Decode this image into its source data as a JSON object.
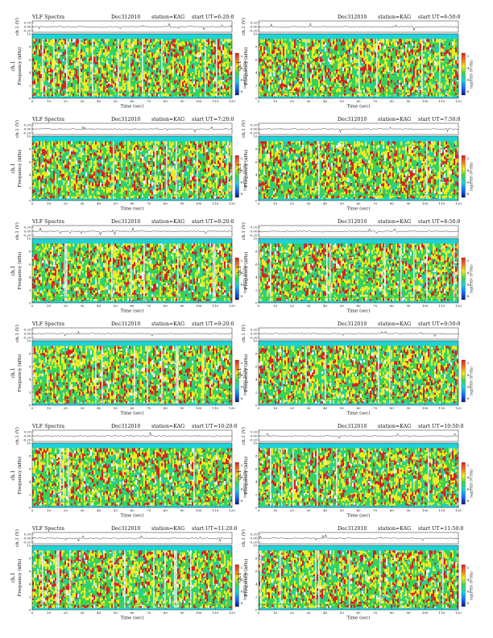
{
  "page": {
    "header_text": {
      "left_title": "VLF Spectra",
      "date": "Dec312010",
      "station": "station=KAG",
      "start_label": "start UT"
    },
    "labels": {
      "top_ylabel": "ch.1 (V)",
      "spec_ylabel_line1": "ch.1",
      "spec_ylabel_line2": "Frequency (kHz)",
      "xlabel": "Time (sec)",
      "colorbar_label": "log(PSD) (V²/Hz)"
    },
    "ticks": {
      "top_y": [
        "0.20",
        "0.00",
        "-0.20"
      ],
      "spec_y": [
        "0",
        "2",
        "4",
        "6",
        "8",
        "10"
      ],
      "x": [
        "0",
        "10",
        "20",
        "30",
        "40",
        "50",
        "60",
        "70",
        "80",
        "90",
        "100",
        "110",
        "120"
      ],
      "colorbar": [
        "-2",
        "-4",
        "-6",
        "-8"
      ]
    },
    "colors": {
      "background": "#1fd2d6",
      "band_floor": "#1fd0a0",
      "mid": "#3cd24a",
      "yellow": "#f0ec20",
      "red": "#dd1f1f",
      "white": "#f4f4f4",
      "deep_blue": "#1030a0",
      "colormap": [
        "#0a1a70",
        "#1060ff",
        "#1fd2d6",
        "#3cd24a",
        "#f0ec20",
        "#f08020",
        "#dd1f1f"
      ]
    }
  },
  "chart_data": [
    {
      "type": "heatmap",
      "title": "VLF Spectra  Dec312010  station=KAG  start UT =6:20:0",
      "start_ut": "=6:20:0",
      "show_left_title": true,
      "xlabel": "Time (sec)",
      "ylabel": "Frequency (kHz)",
      "xlim": [
        0,
        120
      ],
      "ylim": [
        0,
        10
      ],
      "colorbar_label": "log(PSD) (V²/Hz)"
    },
    {
      "type": "heatmap",
      "title": "Dec312010  station=KAG  start UT =6:50:0",
      "start_ut": "=6:50:0",
      "show_left_title": false,
      "xlabel": "Time (sec)",
      "ylabel": "Frequency (kHz)",
      "xlim": [
        0,
        120
      ],
      "ylim": [
        0,
        10
      ],
      "colorbar_label": "log(PSD) (V²/Hz)"
    },
    {
      "type": "heatmap",
      "title": "VLF Spectra  Dec312010  station=KAG  start UT =7:20:0",
      "start_ut": "=7:20:0",
      "show_left_title": true,
      "xlabel": "Time (sec)",
      "ylabel": "Frequency (kHz)",
      "xlim": [
        0,
        120
      ],
      "ylim": [
        0,
        10
      ],
      "colorbar_label": "log(PSD) (V²/Hz)"
    },
    {
      "type": "heatmap",
      "title": "Dec312010  station=KAG  start UT =7:50:0",
      "start_ut": "=7:50:0",
      "show_left_title": false,
      "xlabel": "Time (sec)",
      "ylabel": "Frequency (kHz)",
      "xlim": [
        0,
        120
      ],
      "ylim": [
        0,
        10
      ],
      "colorbar_label": "log(PSD) (V²/Hz)"
    },
    {
      "type": "heatmap",
      "title": "VLF Spectra  Dec312010  station=KAG  start UT =8:20:0",
      "start_ut": "=8:20:0",
      "show_left_title": true,
      "xlabel": "Time (sec)",
      "ylabel": "Frequency (kHz)",
      "xlim": [
        0,
        120
      ],
      "ylim": [
        0,
        10
      ],
      "colorbar_label": "log(PSD) (V²/Hz)"
    },
    {
      "type": "heatmap",
      "title": "Dec312010  station=KAG  start UT =8:50:0",
      "start_ut": "=8:50:0",
      "show_left_title": false,
      "xlabel": "Time (sec)",
      "ylabel": "Frequency (kHz)",
      "xlim": [
        0,
        120
      ],
      "ylim": [
        0,
        10
      ],
      "colorbar_label": "log(PSD) (V²/Hz)"
    },
    {
      "type": "heatmap",
      "title": "VLF Spectra  Dec312010  station=KAG  start UT =9:20:0",
      "start_ut": "=9:20:0",
      "show_left_title": true,
      "xlabel": "Time (sec)",
      "ylabel": "Frequency (kHz)",
      "xlim": [
        0,
        120
      ],
      "ylim": [
        0,
        10
      ],
      "colorbar_label": "log(PSD) (V²/Hz)"
    },
    {
      "type": "heatmap",
      "title": "Dec312010  station=KAG  start UT =9:50:0",
      "start_ut": "=9:50:0",
      "show_left_title": false,
      "xlabel": "Time (sec)",
      "ylabel": "Frequency (kHz)",
      "xlim": [
        0,
        120
      ],
      "ylim": [
        0,
        10
      ],
      "colorbar_label": "log(PSD) (V²/Hz)"
    },
    {
      "type": "heatmap",
      "title": "VLF Spectra  Dec312010  station=KAG  start UT =10:20:0",
      "start_ut": "=10:20:0",
      "show_left_title": true,
      "xlabel": "Time (sec)",
      "ylabel": "Frequency (kHz)",
      "xlim": [
        0,
        120
      ],
      "ylim": [
        0,
        10
      ],
      "colorbar_label": "log(PSD) (V²/Hz)"
    },
    {
      "type": "heatmap",
      "title": "Dec312010  station=KAG  start UT =10:50:0",
      "start_ut": "=10:50:0",
      "show_left_title": false,
      "xlabel": "Time (sec)",
      "ylabel": "Frequency (kHz)",
      "xlim": [
        0,
        120
      ],
      "ylim": [
        0,
        10
      ],
      "colorbar_label": "log(PSD) (V²/Hz)"
    },
    {
      "type": "heatmap",
      "title": "VLF Spectra  Dec312010  station=KAG  start UT =11:20:0",
      "start_ut": "=11:20:0",
      "show_left_title": true,
      "xlabel": "Time (sec)",
      "ylabel": "Frequency (kHz)",
      "xlim": [
        0,
        120
      ],
      "ylim": [
        0,
        10
      ],
      "colorbar_label": "log(PSD) (V²/Hz)"
    },
    {
      "type": "heatmap",
      "title": "Dec312010  station=KAG  start UT =11:50:0",
      "start_ut": "=11:50:0",
      "show_left_title": false,
      "xlabel": "Time (sec)",
      "ylabel": "Frequency (kHz)",
      "xlim": [
        0,
        120
      ],
      "ylim": [
        0,
        10
      ],
      "colorbar_label": "log(PSD) (V²/Hz)"
    }
  ]
}
